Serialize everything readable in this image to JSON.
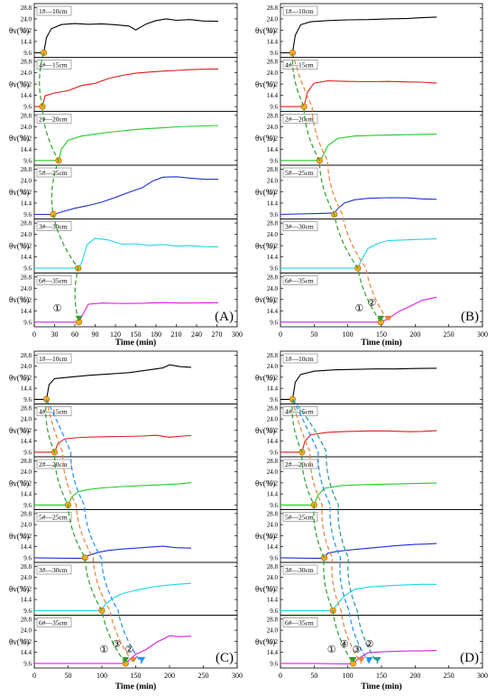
{
  "chart_data": [
    {
      "type": "line",
      "panel_label": "(A)",
      "xlabel": "Time (min)",
      "x_ticks": [
        0,
        30,
        60,
        90,
        120,
        150,
        180,
        210,
        240,
        270,
        300
      ],
      "xlim": [
        0,
        300
      ],
      "ylabel": "θv(%)",
      "y_ticks": [
        9.6,
        14.4,
        19.2,
        24.0,
        28.8
      ],
      "ylim": [
        7.6,
        30.5
      ],
      "legend_position": "top-left",
      "arrow_color": "#2ca02c",
      "arrow_labels": [
        "①"
      ],
      "series": [
        {
          "name": "1#—10cm",
          "color": "#000000",
          "onset_x": 14,
          "x": [
            0,
            14,
            18,
            25,
            40,
            60,
            80,
            100,
            120,
            140,
            150,
            165,
            180,
            195,
            210,
            230,
            250,
            272
          ],
          "y": [
            9.6,
            9.6,
            16.0,
            19.8,
            21.6,
            22.0,
            21.7,
            21.9,
            21.5,
            21.0,
            19.3,
            21.8,
            23.3,
            24.0,
            23.4,
            23.7,
            23.1,
            23.0
          ]
        },
        {
          "name": "4#—15cm",
          "color": "#e31a1c",
          "onset_x": 12,
          "x": [
            0,
            12,
            16,
            30,
            50,
            70,
            90,
            110,
            130,
            150,
            170,
            190,
            210,
            230,
            250,
            272
          ],
          "y": [
            9.6,
            9.6,
            14.2,
            15.4,
            16.4,
            18.6,
            19.5,
            21.6,
            22.9,
            23.8,
            24.3,
            24.7,
            25.0,
            25.3,
            25.5,
            25.6
          ]
        },
        {
          "name": "2#—20cm",
          "color": "#22cc22",
          "onset_x": 36,
          "x": [
            0,
            36,
            40,
            50,
            70,
            90,
            110,
            130,
            150,
            170,
            190,
            210,
            230,
            250,
            272
          ],
          "y": [
            9.6,
            9.6,
            14.4,
            18.2,
            20.0,
            20.8,
            21.6,
            22.2,
            22.8,
            23.2,
            23.5,
            23.9,
            24.1,
            24.3,
            24.5
          ]
        },
        {
          "name": "5#—25cm",
          "color": "#1f2fd6",
          "onset_x": 28,
          "x": [
            0,
            28,
            40,
            60,
            80,
            100,
            120,
            140,
            160,
            175,
            190,
            210,
            230,
            250,
            272
          ],
          "y": [
            9.6,
            9.6,
            10.6,
            12.2,
            13.4,
            14.8,
            16.8,
            19.0,
            21.0,
            23.8,
            25.4,
            25.6,
            25.0,
            24.6,
            24.5
          ]
        },
        {
          "name": "3#—30cm",
          "color": "#1ed6e6",
          "onset_x": 65,
          "x": [
            0,
            65,
            70,
            78,
            90,
            110,
            130,
            150,
            170,
            190,
            210,
            230,
            250,
            272
          ],
          "y": [
            9.6,
            9.6,
            12.0,
            19.6,
            22.3,
            21.6,
            19.8,
            20.0,
            19.2,
            19.7,
            19.0,
            19.2,
            18.8,
            18.7
          ]
        },
        {
          "name": "6#—35cm",
          "color": "#e01ee0",
          "onset_x": 66,
          "x": [
            0,
            66,
            72,
            80,
            100,
            130,
            160,
            190,
            220,
            250,
            272
          ],
          "y": [
            9.6,
            9.6,
            13.0,
            17.2,
            17.7,
            17.5,
            17.6,
            17.9,
            17.7,
            17.8,
            17.8
          ]
        }
      ]
    },
    {
      "type": "line",
      "panel_label": "(B)",
      "xlabel": "Time (min)",
      "x_ticks": [
        0,
        50,
        100,
        150,
        200,
        250,
        300
      ],
      "xlim": [
        0,
        300
      ],
      "ylabel": "θv(%)",
      "y_ticks": [
        9.6,
        14.4,
        19.2,
        24.0,
        28.8
      ],
      "ylim": [
        7.6,
        30.5
      ],
      "legend_position": "top-left",
      "arrow_color": "#2ca02c",
      "arrow_color_2": "#e2823c",
      "arrow_labels": [
        "①",
        "②"
      ],
      "series": [
        {
          "name": "1#—10cm",
          "color": "#000000",
          "onset_x": 18,
          "x": [
            0,
            18,
            22,
            30,
            45,
            70,
            100,
            130,
            160,
            190,
            210,
            232
          ],
          "y": [
            9.6,
            9.6,
            17.0,
            21.5,
            22.8,
            23.3,
            23.6,
            23.7,
            24.0,
            24.2,
            24.5,
            24.8
          ]
        },
        {
          "name": "4#—15cm",
          "color": "#e31a1c",
          "onset_x": 35,
          "x": [
            0,
            35,
            40,
            50,
            70,
            100,
            130,
            160,
            190,
            210,
            232
          ],
          "y": [
            9.6,
            9.6,
            15.8,
            19.6,
            20.6,
            20.3,
            20.2,
            20.3,
            20.1,
            20.0,
            19.6
          ]
        },
        {
          "name": "2#—20cm",
          "color": "#22cc22",
          "onset_x": 58,
          "x": [
            0,
            58,
            62,
            70,
            85,
            110,
            140,
            170,
            200,
            232
          ],
          "y": [
            9.6,
            9.6,
            11.0,
            15.8,
            19.0,
            20.0,
            20.3,
            20.5,
            20.6,
            20.8
          ]
        },
        {
          "name": "5#—25cm",
          "color": "#1f2fd6",
          "onset_x": 80,
          "x": [
            0,
            60,
            80,
            85,
            95,
            110,
            130,
            160,
            190,
            210,
            232
          ],
          "y": [
            9.6,
            10.0,
            10.2,
            12.0,
            14.4,
            15.8,
            16.4,
            16.7,
            16.6,
            16.2,
            16.0
          ]
        },
        {
          "name": "3#—30cm",
          "color": "#1ed6e6",
          "onset_x": 115,
          "x": [
            0,
            115,
            120,
            130,
            145,
            160,
            180,
            200,
            220,
            232
          ],
          "y": [
            9.6,
            9.6,
            13.0,
            18.0,
            20.2,
            21.4,
            21.6,
            21.8,
            22.0,
            22.1
          ]
        },
        {
          "name": "6#—35cm",
          "color": "#e01ee0",
          "onset_x": 149,
          "x": [
            0,
            149,
            160,
            175,
            190,
            210,
            232
          ],
          "y": [
            9.6,
            9.6,
            11.0,
            14.0,
            16.0,
            18.8,
            20.2
          ]
        }
      ]
    },
    {
      "type": "line",
      "panel_label": "(C)",
      "xlabel": "Time (min)",
      "x_ticks": [
        0,
        50,
        100,
        150,
        200,
        250,
        300
      ],
      "xlim": [
        0,
        300
      ],
      "ylabel": "θv(%)",
      "y_ticks": [
        9.6,
        14.4,
        19.2,
        24.0,
        28.8
      ],
      "ylim": [
        7.6,
        30.5
      ],
      "legend_position": "top-left",
      "arrow_color": "#2ca02c",
      "arrow_color_2": "#e2823c",
      "arrow_color_3": "#1e90ff",
      "arrow_labels": [
        "①",
        "③",
        "②"
      ],
      "series": [
        {
          "name": "1#—10cm",
          "color": "#000000",
          "onset_x": 18,
          "x": [
            0,
            18,
            22,
            30,
            50,
            80,
            110,
            140,
            170,
            190,
            200,
            215,
            232
          ],
          "y": [
            9.6,
            9.6,
            16.0,
            18.6,
            19.2,
            20.0,
            20.6,
            21.2,
            22.4,
            23.2,
            24.6,
            23.8,
            23.5
          ]
        },
        {
          "name": "4#—15cm",
          "color": "#e31a1c",
          "onset_x": 30,
          "x": [
            0,
            30,
            35,
            45,
            70,
            100,
            130,
            160,
            180,
            200,
            220,
            232
          ],
          "y": [
            9.6,
            9.6,
            13.4,
            15.4,
            16.0,
            16.3,
            16.4,
            16.6,
            16.9,
            16.1,
            16.6,
            16.8
          ]
        },
        {
          "name": "2#—20cm",
          "color": "#22cc22",
          "onset_x": 50,
          "x": [
            0,
            50,
            55,
            65,
            80,
            100,
            130,
            160,
            190,
            215,
            232
          ],
          "y": [
            9.6,
            9.6,
            13.0,
            15.4,
            16.3,
            17.0,
            17.6,
            18.0,
            18.4,
            18.8,
            19.3
          ]
        },
        {
          "name": "5#—25cm",
          "color": "#1f2fd6",
          "onset_x": 75,
          "x": [
            0,
            50,
            75,
            80,
            95,
            110,
            130,
            150,
            170,
            190,
            210,
            232
          ],
          "y": [
            9.6,
            9.4,
            9.4,
            10.6,
            12.0,
            12.8,
            13.4,
            13.8,
            14.2,
            14.6,
            14.0,
            13.8
          ]
        },
        {
          "name": "3#—30cm",
          "color": "#1ed6e6",
          "onset_x": 100,
          "x": [
            0,
            100,
            104,
            115,
            130,
            150,
            170,
            190,
            210,
            232
          ],
          "y": [
            9.6,
            9.6,
            12.0,
            14.8,
            17.0,
            18.4,
            19.6,
            20.4,
            21.0,
            21.4
          ]
        },
        {
          "name": "6#—35cm",
          "color": "#e01ee0",
          "onset_x": 135,
          "x": [
            0,
            100,
            135,
            140,
            150,
            165,
            180,
            200,
            215,
            232
          ],
          "y": [
            9.6,
            9.6,
            9.6,
            11.0,
            13.6,
            15.6,
            18.6,
            21.6,
            21.2,
            21.4
          ]
        }
      ]
    },
    {
      "type": "line",
      "panel_label": "(D)",
      "xlabel": "Time (min)",
      "x_ticks": [
        0,
        50,
        100,
        150,
        200,
        250,
        300
      ],
      "xlim": [
        0,
        300
      ],
      "ylabel": "θv(%)",
      "y_ticks": [
        9.6,
        14.4,
        19.2,
        24.0,
        28.8
      ],
      "ylim": [
        7.6,
        30.5
      ],
      "legend_position": "top-left",
      "arrow_color": "#2ca02c",
      "arrow_color_2": "#e2823c",
      "arrow_color_3": "#1e90ff",
      "arrow_color_4": "#1e9d8a",
      "arrow_labels": [
        "①",
        "④",
        "③",
        "②"
      ],
      "series": [
        {
          "name": "1#—10cm",
          "color": "#000000",
          "onset_x": 18,
          "x": [
            0,
            18,
            22,
            30,
            50,
            80,
            110,
            140,
            170,
            200,
            232
          ],
          "y": [
            9.6,
            9.6,
            17.0,
            20.4,
            21.8,
            22.4,
            22.6,
            22.8,
            22.8,
            23.0,
            23.1
          ]
        },
        {
          "name": "4#—15cm",
          "color": "#e31a1c",
          "onset_x": 32,
          "x": [
            0,
            32,
            36,
            45,
            70,
            100,
            130,
            160,
            190,
            210,
            232
          ],
          "y": [
            9.6,
            9.6,
            14.2,
            17.2,
            18.2,
            18.6,
            18.8,
            18.8,
            18.5,
            18.6,
            18.9
          ]
        },
        {
          "name": "2#—20cm",
          "color": "#22cc22",
          "onset_x": 50,
          "x": [
            0,
            50,
            55,
            65,
            90,
            120,
            150,
            180,
            210,
            232
          ],
          "y": [
            9.6,
            9.6,
            13.6,
            16.8,
            18.0,
            18.4,
            18.6,
            18.8,
            19.0,
            19.1
          ]
        },
        {
          "name": "5#—25cm",
          "color": "#1f2fd6",
          "onset_x": 65,
          "x": [
            0,
            50,
            65,
            70,
            85,
            110,
            140,
            170,
            200,
            220,
            232
          ],
          "y": [
            9.6,
            9.4,
            9.4,
            11.6,
            12.4,
            13.2,
            14.0,
            14.8,
            15.4,
            15.6,
            15.8
          ]
        },
        {
          "name": "3#—30cm",
          "color": "#1ed6e6",
          "onset_x": 78,
          "x": [
            0,
            78,
            83,
            95,
            110,
            130,
            160,
            190,
            210,
            232
          ],
          "y": [
            9.6,
            9.6,
            12.0,
            16.0,
            18.8,
            19.8,
            20.4,
            20.8,
            21.0,
            21.0
          ]
        },
        {
          "name": "6#—35cm",
          "color": "#e01ee0",
          "onset_x": 108,
          "x": [
            0,
            50,
            90,
            108,
            115,
            130,
            150,
            170,
            190,
            210,
            232
          ],
          "y": [
            9.6,
            9.6,
            9.4,
            9.4,
            11.6,
            14.2,
            14.6,
            14.8,
            15.0,
            15.0,
            15.2
          ]
        }
      ]
    }
  ]
}
